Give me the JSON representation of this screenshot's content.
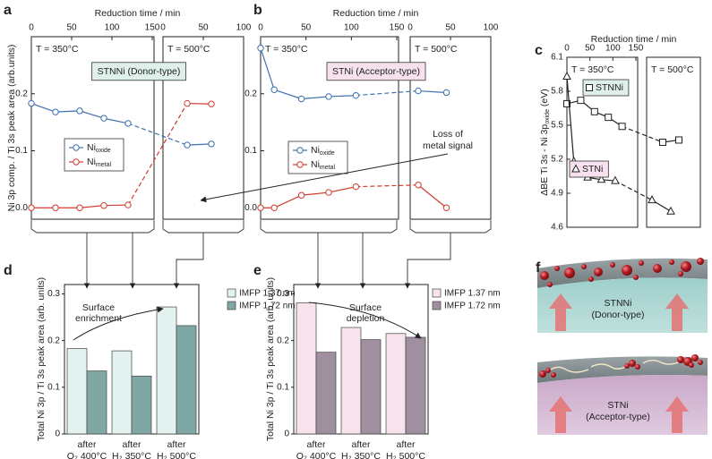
{
  "chart_data": [
    {
      "type": "line",
      "panel_label": "a",
      "xlabel": "Reduction time / min",
      "ylabel": "Ni 3p comp. / Ti 3s peak area (arb.units)",
      "ylim": [
        -0.02,
        0.3
      ],
      "yticks": [
        {
          "value": 0,
          "label": "0.0"
        },
        {
          "value": 0.1,
          "label": "0.1"
        },
        {
          "value": 0.2,
          "label": "0.2"
        }
      ],
      "segments": [
        {
          "label": "T = 350°C",
          "xlim": [
            0,
            150
          ],
          "xticks": [
            0,
            50,
            100,
            150
          ]
        },
        {
          "label": "T = 500°C",
          "xlim": [
            0,
            100
          ],
          "xticks": [
            0,
            50,
            100
          ]
        }
      ],
      "box_label": "STNNi (Donor-type)",
      "box_color": "#dff0eb",
      "series": [
        {
          "name": "Ni",
          "name_sub": "oxide",
          "color": "#3d6fb0",
          "marker": "circle",
          "x": [
            [
              0,
              30,
              60,
              90,
              120
            ],
            [
              30,
              60
            ]
          ],
          "values": [
            [
              0.183,
              0.168,
              0.17,
              0.157,
              0.148
            ],
            [
              0.11,
              0.112
            ]
          ]
        },
        {
          "name": "Ni",
          "name_sub": "metal",
          "color": "#d23a2c",
          "marker": "circle",
          "x": [
            [
              0,
              30,
              60,
              90,
              120
            ],
            [
              30,
              60
            ]
          ],
          "values": [
            [
              0,
              0,
              0,
              0.004,
              0.005
            ],
            [
              0.183,
              0.182
            ]
          ]
        }
      ]
    },
    {
      "type": "line",
      "panel_label": "b",
      "xlabel": "Reduction time / min",
      "ylim": [
        -0.02,
        0.3
      ],
      "yticks": [
        {
          "value": 0,
          "label": "0.0"
        },
        {
          "value": 0.1,
          "label": "0.1"
        },
        {
          "value": 0.2,
          "label": "0.2"
        }
      ],
      "segments": [
        {
          "label": "T = 350°C",
          "xlim": [
            0,
            150
          ],
          "xticks": [
            0,
            50,
            100,
            150
          ]
        },
        {
          "label": "T = 500°C",
          "xlim": [
            0,
            100
          ],
          "xticks": [
            0,
            50,
            100
          ]
        }
      ],
      "box_label": "STNi (Acceptor-type)",
      "box_color": "#f8e1ee",
      "annotation": [
        "Loss of",
        "metal signal"
      ],
      "series": [
        {
          "name": "Ni",
          "name_sub": "oxide",
          "color": "#3d6fb0",
          "marker": "circle",
          "x": [
            [
              0,
              15,
              45,
              75,
              105
            ],
            [
              10,
              45
            ]
          ],
          "values": [
            [
              0.28,
              0.207,
              0.191,
              0.195,
              0.197
            ],
            [
              0.205,
              0.202
            ]
          ]
        },
        {
          "name": "Ni",
          "name_sub": "metal",
          "color": "#d23a2c",
          "marker": "circle",
          "x": [
            [
              0,
              15,
              45,
              75,
              105
            ],
            [
              10,
              45
            ]
          ],
          "values": [
            [
              0,
              0,
              0.022,
              0.027,
              0.037
            ],
            [
              0.04,
              0
            ]
          ]
        }
      ]
    },
    {
      "type": "line",
      "panel_label": "c",
      "xlabel": "Reduction time / min",
      "ylabel": "ΔBE Ti 3s - Ni 3p",
      "ylabel_sub": "oxide",
      "ylabel_tail": " (eV)",
      "ylim": [
        4.6,
        6.1
      ],
      "yticks": [
        4.6,
        4.9,
        5.2,
        5.5,
        5.8,
        6.1
      ],
      "segments": [
        {
          "label": "T = 350°C",
          "xlim": [
            0,
            150
          ],
          "xticks": [
            0,
            50,
            100,
            150
          ]
        },
        {
          "label": "T = 500°C",
          "xlim": [
            0,
            100
          ]
        }
      ],
      "series": [
        {
          "name": "STNNi",
          "color": "#222222",
          "marker": "square",
          "x": [
            [
              0,
              30,
              60,
              90,
              120
            ],
            [
              30,
              60
            ]
          ],
          "values": [
            [
              5.69,
              5.72,
              5.62,
              5.57,
              5.49
            ],
            [
              5.35,
              5.37
            ]
          ]
        },
        {
          "name": "STNi",
          "color": "#222222",
          "marker": "triangle",
          "x": [
            [
              0,
              15,
              45,
              75,
              105
            ],
            [
              10,
              45
            ]
          ],
          "values": [
            [
              5.93,
              5.18,
              5.04,
              5.02,
              5.01
            ],
            [
              4.84,
              4.74
            ]
          ]
        }
      ]
    },
    {
      "type": "bar",
      "panel_label": "d",
      "ylabel": "Total Ni 3p / Ti 3s peak area (arb. units)",
      "ylim": [
        0,
        0.32
      ],
      "yticks": [
        0,
        0.1,
        0.2,
        0.3
      ],
      "categories": [
        [
          "after",
          "O₂ 400°C"
        ],
        [
          "after",
          "H₂ 350°C"
        ],
        [
          "after",
          "H₂ 500°C"
        ]
      ],
      "annotation": [
        "Surface",
        "enrichment"
      ],
      "series": [
        {
          "name": "IMFP 1.37 nm",
          "color": "#e4f2ef",
          "values": [
            0.183,
            0.178,
            0.272
          ]
        },
        {
          "name": "IMFP 1.72 nm",
          "color": "#7fa7a3",
          "values": [
            0.135,
            0.124,
            0.232
          ]
        }
      ]
    },
    {
      "type": "bar",
      "panel_label": "e",
      "ylabel": "Total Ni 3p / Ti 3s peak area (arb. units)",
      "ylim": [
        0,
        0.32
      ],
      "yticks": [
        0,
        0.1,
        0.2,
        0.3
      ],
      "categories": [
        [
          "after",
          "O₂ 400°C"
        ],
        [
          "after",
          "H₂ 350°C"
        ],
        [
          "after",
          "H₂ 500°C"
        ]
      ],
      "annotation": [
        "Surface",
        "depletion"
      ],
      "series": [
        {
          "name": "IMFP 1.37 nm",
          "color": "#f7e3ec",
          "values": [
            0.281,
            0.228,
            0.215
          ]
        },
        {
          "name": "IMFP 1.72 nm",
          "color": "#a08f9e",
          "values": [
            0.175,
            0.202,
            0.207
          ]
        }
      ]
    }
  ],
  "panel_f": {
    "panel_label": "f",
    "top": [
      "STNNi",
      "(Donor-type)"
    ],
    "bottom": [
      "STNi",
      "(Acceptor-type)"
    ]
  }
}
